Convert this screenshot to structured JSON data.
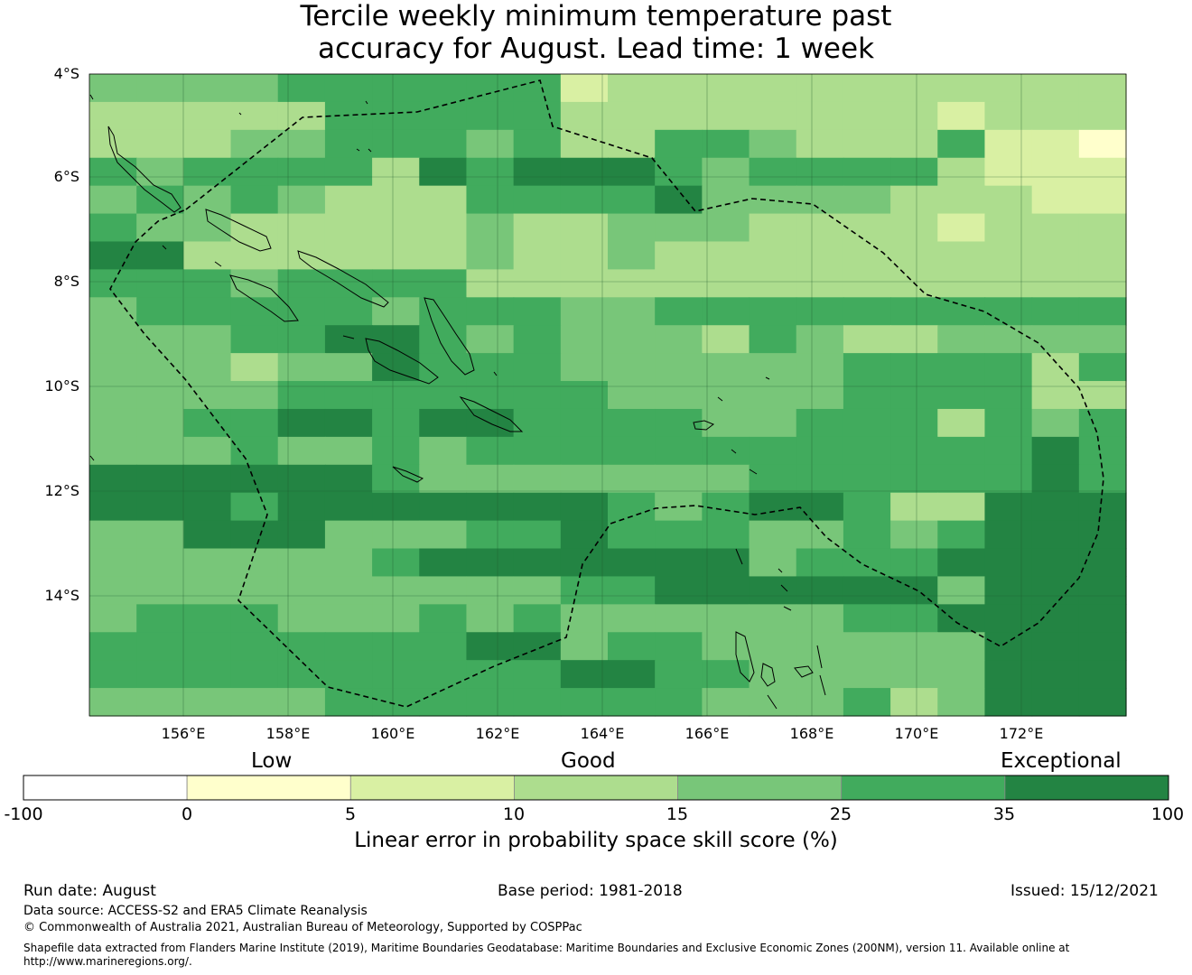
{
  "title": {
    "line1": "Tercile weekly minimum temperature past",
    "line2": "accuracy for August. Lead time: 1 week"
  },
  "map": {
    "lat_labels": [
      "4°S",
      "6°S",
      "8°S",
      "10°S",
      "12°S",
      "14°S"
    ],
    "lon_labels": [
      "156°E",
      "158°E",
      "160°E",
      "162°E",
      "164°E",
      "166°E",
      "168°E",
      "170°E",
      "172°E"
    ],
    "grid_rows": [
      "3333444444122222222222",
      "2222244444222222221222",
      "2223344434224432224110",
      "4344442545554344442111",
      "3434322244445333322211",
      "4332222232233322221222",
      "5522222232232222222222",
      "4443444422222222222222",
      "3444443444334444444444",
      "3334455434333243223333",
      "3332335444333333444424",
      "3333444444433333444422",
      "3344554554444334442434",
      "3334334344444444444454",
      "5555554333333344444454",
      "5554555555543455422555",
      "3355533344544433434555",
      "3333334555555534445555",
      "3333333333445555553555",
      "3444333434333333445555",
      "4444444455344333333555",
      "4444444444554433333555",
      "3333344444444333423555"
    ],
    "colors": [
      "#ffffcc",
      "#d9f0a3",
      "#addd8e",
      "#78c679",
      "#41ab5d",
      "#238443"
    ]
  },
  "legend": {
    "category_labels": [
      "Low",
      "Good",
      "Exceptional"
    ],
    "colors": [
      "#ffffff",
      "#ffffcc",
      "#d9f0a3",
      "#addd8e",
      "#78c679",
      "#41ab5d",
      "#238443"
    ],
    "ticks": [
      "-100",
      "0",
      "5",
      "10",
      "15",
      "25",
      "35",
      "100"
    ],
    "label": "Linear error in probability space skill score (%)"
  },
  "footer": {
    "run_date": "Run date: August",
    "base_period": "Base period: 1981-2018",
    "issued": "Issued: 15/12/2021",
    "data_source": "Data source: ACCESS-S2 and ERA5 Climate Reanalysis",
    "copyright": "© Commonwealth of Australia 2021, Australian Bureau of Meteorology, Supported by COSPPac",
    "shapefile_line1": "Shapefile data extracted from Flanders Marine Institute (2019), Maritime Boundaries Geodatabase: Maritime Boundaries and Exclusive Economic Zones (200NM), version 11. Available online at",
    "shapefile_line2": "http://www.marineregions.org/."
  }
}
